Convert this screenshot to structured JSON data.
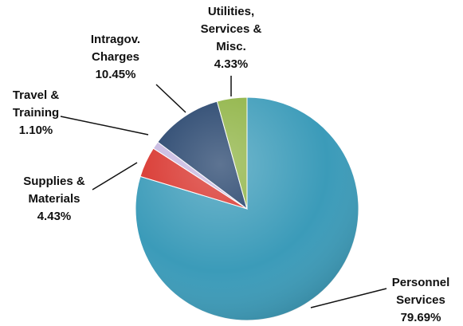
{
  "chart_data": {
    "type": "pie",
    "categories": [
      "Personnel Services",
      "Supplies & Materials",
      "Travel & Training",
      "Intragov. Charges",
      "Utilities, Services & Misc."
    ],
    "values": [
      79.69,
      4.43,
      1.1,
      10.45,
      4.33
    ],
    "value_labels": [
      "79.69%",
      "4.43%",
      "1.10%",
      "10.45%",
      "4.33%"
    ],
    "colors": [
      "#3b9bb9",
      "#d8322b",
      "#c6b7e0",
      "#1f3e68",
      "#8db241"
    ]
  }
}
